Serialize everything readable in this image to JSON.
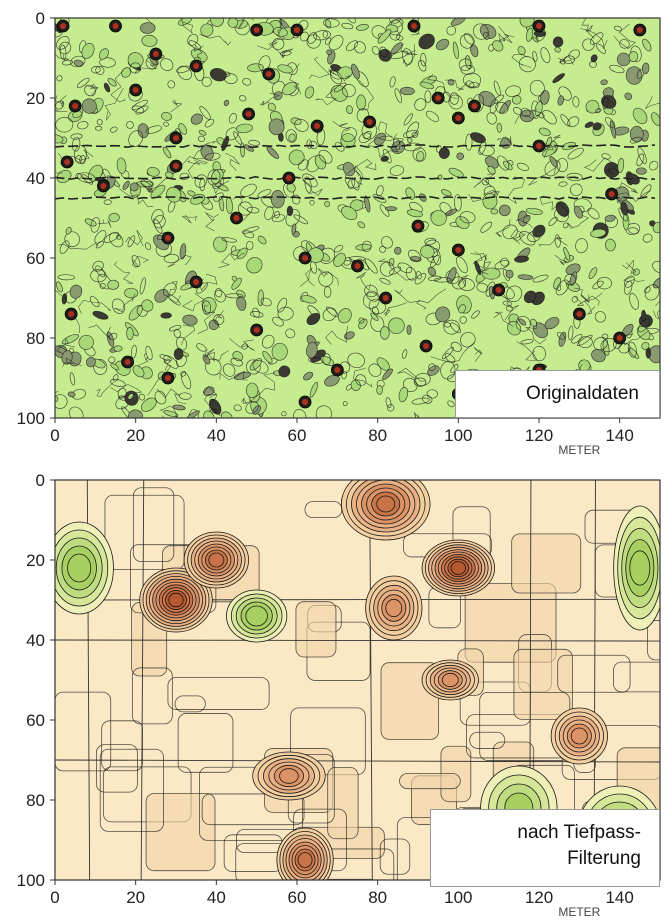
{
  "chart_data": [
    {
      "type": "heatmap",
      "variant": "contour",
      "annotation": "Originaldaten",
      "xlabel": "METER",
      "ylabel": "",
      "xlim": [
        0,
        150
      ],
      "ylim": [
        0,
        100
      ],
      "y_inverted": true,
      "x_ticks": [
        0,
        20,
        40,
        60,
        80,
        100,
        120,
        140
      ],
      "y_ticks": [
        0,
        20,
        40,
        60,
        80,
        100
      ],
      "grid": false,
      "colors": {
        "background": "#c6ec90",
        "low": "#a8d878",
        "high": "#b03020",
        "line": "#1a1a1a"
      },
      "features": {
        "lines_y": [
          32,
          40,
          45
        ],
        "spots": [
          [
            2,
            2
          ],
          [
            15,
            2
          ],
          [
            50,
            3
          ],
          [
            60,
            3
          ],
          [
            89,
            2
          ],
          [
            120,
            2
          ],
          [
            145,
            3
          ],
          [
            25,
            9
          ],
          [
            35,
            12
          ],
          [
            53,
            14
          ],
          [
            20,
            18
          ],
          [
            5,
            22
          ],
          [
            48,
            24
          ],
          [
            95,
            20
          ],
          [
            104,
            22
          ],
          [
            78,
            26
          ],
          [
            100,
            25
          ],
          [
            65,
            27
          ],
          [
            30,
            30
          ],
          [
            120,
            32
          ],
          [
            3,
            36
          ],
          [
            30,
            37
          ],
          [
            12,
            42
          ],
          [
            58,
            40
          ],
          [
            138,
            44
          ],
          [
            45,
            50
          ],
          [
            90,
            52
          ],
          [
            28,
            55
          ],
          [
            100,
            58
          ],
          [
            62,
            60
          ],
          [
            75,
            62
          ],
          [
            35,
            66
          ],
          [
            82,
            70
          ],
          [
            110,
            68
          ],
          [
            130,
            74
          ],
          [
            4,
            74
          ],
          [
            50,
            78
          ],
          [
            140,
            80
          ],
          [
            92,
            82
          ],
          [
            18,
            86
          ],
          [
            70,
            88
          ],
          [
            120,
            88
          ],
          [
            28,
            90
          ],
          [
            62,
            96
          ],
          [
            100,
            94
          ]
        ]
      }
    },
    {
      "type": "heatmap",
      "variant": "contour",
      "annotation_lines": [
        "nach Tiefpass-",
        "Filterung"
      ],
      "xlabel": "METER",
      "ylabel": "",
      "xlim": [
        0,
        150
      ],
      "ylim": [
        0,
        100
      ],
      "y_inverted": true,
      "x_ticks": [
        0,
        20,
        40,
        60,
        80,
        100,
        120,
        140
      ],
      "y_ticks": [
        0,
        20,
        40,
        60,
        80,
        100
      ],
      "grid": false,
      "colors": {
        "background": "#fbe8c4",
        "low": "#a8d060",
        "high": "#b85a30",
        "line": "#1a1a1a"
      },
      "features": {
        "highs": [
          [
            30,
            30,
            8,
            7,
            3
          ],
          [
            40,
            20,
            7,
            6,
            2
          ],
          [
            100,
            22,
            8,
            6,
            3
          ],
          [
            82,
            6,
            10,
            8,
            2
          ],
          [
            84,
            32,
            6,
            7,
            1
          ],
          [
            98,
            50,
            6,
            4,
            1
          ],
          [
            62,
            95,
            6,
            7,
            2
          ],
          [
            58,
            74,
            8,
            5,
            1
          ],
          [
            130,
            64,
            6,
            6,
            1
          ]
        ],
        "lows": [
          [
            50,
            34,
            6,
            5,
            2
          ],
          [
            6,
            22,
            7,
            10,
            2
          ],
          [
            145,
            22,
            5,
            14,
            2
          ],
          [
            140,
            88,
            9,
            10,
            2
          ],
          [
            115,
            82,
            8,
            9,
            1
          ]
        ]
      }
    }
  ]
}
